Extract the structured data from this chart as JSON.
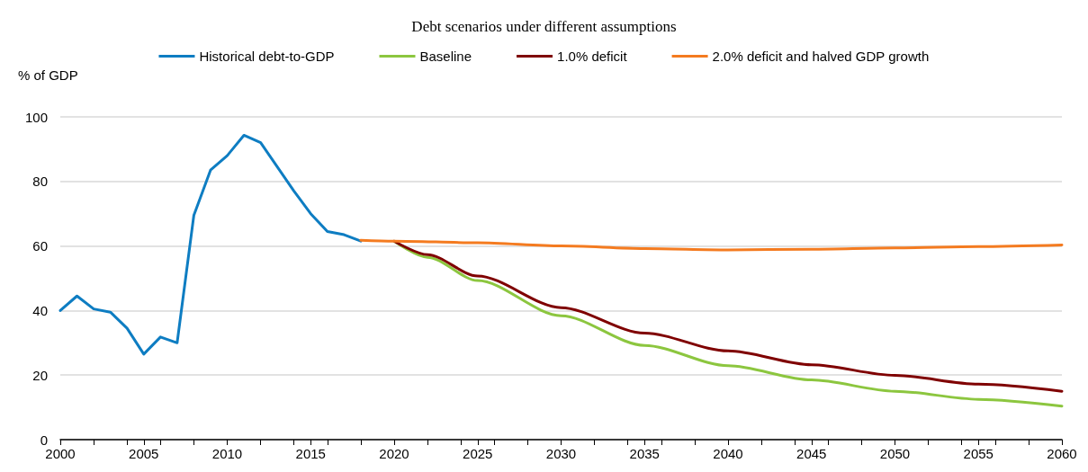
{
  "chart_data": {
    "type": "line",
    "title": "Debt scenarios under different assumptions",
    "ylabel": "% of GDP",
    "xlim": [
      2000,
      2060
    ],
    "xticks": [
      2000,
      2005,
      2010,
      2015,
      2020,
      2025,
      2030,
      2035,
      2040,
      2045,
      2050,
      2055,
      2060
    ],
    "ylim": [
      0,
      100
    ],
    "yticks": [
      0,
      20,
      40,
      60,
      80,
      100
    ],
    "grid": "y",
    "legend": "top",
    "line_style": "solid",
    "marker": "none",
    "series": [
      {
        "name": "Historical debt-to-GDP",
        "color": "#0e7dc2",
        "x": [
          2000,
          2001,
          2002,
          2003,
          2004,
          2005,
          2006,
          2007,
          2008,
          2009,
          2010,
          2011,
          2012,
          2013,
          2014,
          2015,
          2016,
          2017,
          2018
        ],
        "values": [
          40,
          44.5,
          40.5,
          39.5,
          34.5,
          26.5,
          31.8,
          30,
          69.5,
          83.5,
          88,
          94.3,
          92,
          84.5,
          77,
          70,
          64.5,
          63.5,
          61.5
        ]
      },
      {
        "name": "Baseline",
        "color": "#8cc63f",
        "x": [
          2020,
          2022,
          2025,
          2030,
          2035,
          2040,
          2045,
          2050,
          2055,
          2060
        ],
        "values": [
          61.5,
          56.5,
          49.3,
          38.4,
          29.2,
          22.9,
          18.5,
          15,
          12.5,
          10.4
        ]
      },
      {
        "name": "1.0% deficit",
        "color": "#7f0000",
        "x": [
          2020,
          2022,
          2025,
          2030,
          2035,
          2040,
          2045,
          2050,
          2055,
          2060
        ],
        "values": [
          61.5,
          57.3,
          50.7,
          40.9,
          33,
          27.5,
          23.2,
          19.9,
          17.2,
          15
        ]
      },
      {
        "name": "2.0% deficit and halved GDP growth",
        "color": "#f47b20",
        "x": [
          2018,
          2020,
          2025,
          2030,
          2035,
          2040,
          2045,
          2050,
          2055,
          2060
        ],
        "values": [
          61.8,
          61.5,
          61,
          60,
          59.2,
          58.8,
          59,
          59.4,
          59.8,
          60.3
        ]
      }
    ]
  }
}
